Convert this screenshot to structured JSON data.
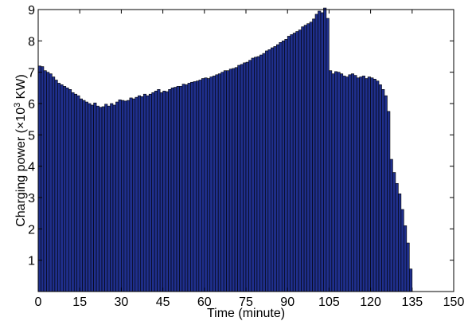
{
  "chart_data": {
    "type": "bar",
    "xlabel": "Time (minute)",
    "ylabel_prefix": "Charging power (×10",
    "ylabel_exponent": "3",
    "ylabel_suffix": " KW)",
    "xlim": [
      0,
      150
    ],
    "ylim": [
      0,
      9
    ],
    "xticks": [
      0,
      15,
      30,
      45,
      60,
      75,
      90,
      105,
      120,
      135,
      150
    ],
    "yticks": [
      1,
      2,
      3,
      4,
      5,
      6,
      7,
      8,
      9
    ],
    "grid": false,
    "bar_color": "#1f2f8c",
    "bin_width": 1,
    "x": [
      0,
      1,
      2,
      3,
      4,
      5,
      6,
      7,
      8,
      9,
      10,
      11,
      12,
      13,
      14,
      15,
      16,
      17,
      18,
      19,
      20,
      21,
      22,
      23,
      24,
      25,
      26,
      27,
      28,
      29,
      30,
      31,
      32,
      33,
      34,
      35,
      36,
      37,
      38,
      39,
      40,
      41,
      42,
      43,
      44,
      45,
      46,
      47,
      48,
      49,
      50,
      51,
      52,
      53,
      54,
      55,
      56,
      57,
      58,
      59,
      60,
      61,
      62,
      63,
      64,
      65,
      66,
      67,
      68,
      69,
      70,
      71,
      72,
      73,
      74,
      75,
      76,
      77,
      78,
      79,
      80,
      81,
      82,
      83,
      84,
      85,
      86,
      87,
      88,
      89,
      90,
      91,
      92,
      93,
      94,
      95,
      96,
      97,
      98,
      99,
      100,
      101,
      102,
      103,
      104,
      105,
      106,
      107,
      108,
      109,
      110,
      111,
      112,
      113,
      114,
      115,
      116,
      117,
      118,
      119,
      120,
      121,
      122,
      123,
      124,
      125,
      126,
      127,
      128,
      129,
      130,
      131,
      132,
      133,
      134
    ],
    "values": [
      7.2,
      7.18,
      7.05,
      7.0,
      6.95,
      6.85,
      6.75,
      6.65,
      6.6,
      6.55,
      6.5,
      6.45,
      6.35,
      6.3,
      6.25,
      6.15,
      6.1,
      6.05,
      6.0,
      5.95,
      6.02,
      5.92,
      5.88,
      5.9,
      5.98,
      5.92,
      6.0,
      5.95,
      6.05,
      6.12,
      6.1,
      6.08,
      6.1,
      6.18,
      6.15,
      6.2,
      6.25,
      6.22,
      6.3,
      6.25,
      6.3,
      6.35,
      6.4,
      6.45,
      6.35,
      6.4,
      6.38,
      6.45,
      6.5,
      6.52,
      6.55,
      6.55,
      6.62,
      6.6,
      6.65,
      6.68,
      6.7,
      6.72,
      6.75,
      6.8,
      6.82,
      6.8,
      6.85,
      6.88,
      6.92,
      6.95,
      7.0,
      7.05,
      7.05,
      7.1,
      7.12,
      7.15,
      7.22,
      7.25,
      7.3,
      7.32,
      7.38,
      7.45,
      7.48,
      7.5,
      7.55,
      7.6,
      7.68,
      7.72,
      7.78,
      7.82,
      7.88,
      7.95,
      8.0,
      8.05,
      8.15,
      8.2,
      8.25,
      8.3,
      8.35,
      8.45,
      8.5,
      8.55,
      8.6,
      8.7,
      8.85,
      8.95,
      8.9,
      9.05,
      8.72,
      7.05,
      6.95,
      7.02,
      7.0,
      6.95,
      6.88,
      6.85,
      6.92,
      6.95,
      6.9,
      6.82,
      6.85,
      6.88,
      6.8,
      6.85,
      6.82,
      6.78,
      6.72,
      6.6,
      6.45,
      6.25,
      5.75,
      4.22,
      3.8,
      3.45,
      3.12,
      2.62,
      2.1,
      1.55,
      0.72
    ]
  }
}
